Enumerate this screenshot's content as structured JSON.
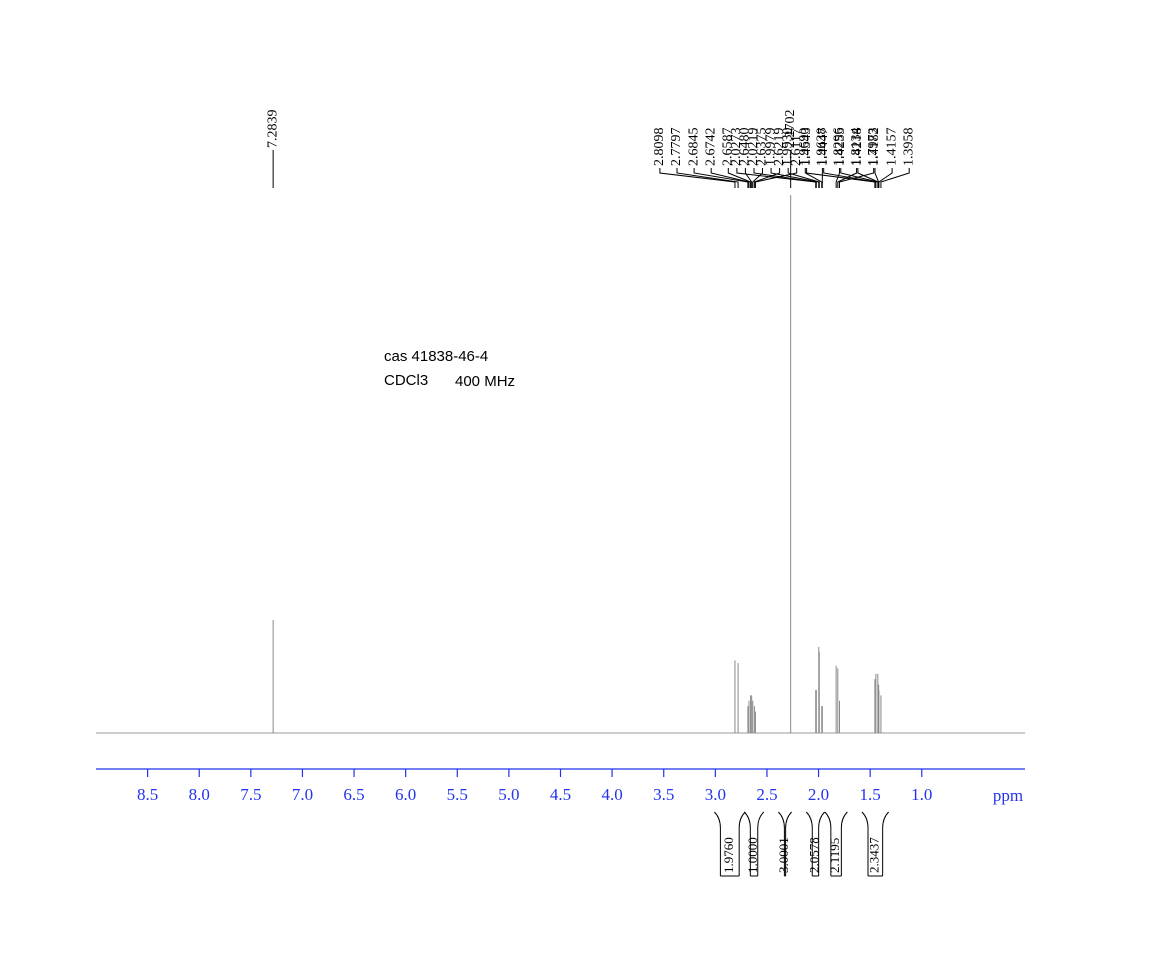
{
  "chart_data": {
    "type": "nmr",
    "annotations": [
      "cas 41838-46-4",
      "CDCl3",
      "400 MHz"
    ],
    "x_label": "ppm",
    "xlim": [
      9.0,
      0.0
    ],
    "xticks": [
      8.5,
      {
        "value": 8.0,
        "label": "8.0"
      },
      7.5,
      {
        "value": 7.0,
        "label": "7.0"
      },
      6.5,
      {
        "value": 6.0,
        "label": "6.0"
      },
      5.5,
      {
        "value": 5.0,
        "label": "5.0"
      },
      4.5,
      {
        "value": 4.0,
        "label": "4.0"
      },
      3.5,
      {
        "value": 3.0,
        "label": "3.0"
      },
      2.5,
      {
        "value": 2.0,
        "label": "2.0"
      },
      1.5,
      {
        "value": 1.0,
        "label": "1.0"
      }
    ],
    "peaks": {
      "values": [
        7.2839,
        2.8098,
        2.7797,
        2.6845,
        2.6742,
        2.6587,
        2.648,
        2.6375,
        2.6219,
        2.6117,
        2.2702,
        2.0273,
        2.0219,
        1.9979,
        1.993,
        1.969,
        1.9638,
        1.8296,
        1.8134,
        1.7973,
        1.4543,
        1.4447,
        1.4255,
        1.4218,
        1.4182,
        1.4157,
        1.3958
      ],
      "value_labels": [
        "7.2839",
        "2.8098",
        "2.7797",
        "2.6845",
        "2.6742",
        "2.6587",
        "2.6480",
        "2.6375",
        "2.6219",
        "2.6117",
        "2.2702",
        "2.0273",
        "2.0219",
        "1.9979",
        "1.9930",
        "1.9690",
        "1.9638",
        "1.8296",
        "1.8134",
        "1.7973",
        "1.4543",
        "1.4447",
        "1.4255",
        "1.4218",
        "1.4182",
        "1.4157",
        "1.3958"
      ],
      "heights": [
        21,
        13.5,
        13,
        5,
        6,
        7,
        7,
        6,
        5,
        4,
        100,
        8,
        8,
        16,
        15,
        5,
        5,
        12.5,
        12,
        6,
        10,
        11,
        11,
        9,
        9,
        8,
        7
      ]
    },
    "integrals": {
      "ranges": [
        [
          2.98,
          2.74
        ],
        [
          2.69,
          2.56
        ],
        [
          2.36,
          2.29
        ],
        [
          2.09,
          1.97
        ],
        [
          1.91,
          1.75
        ],
        [
          1.55,
          1.35
        ]
      ],
      "values": [
        1.976,
        1.0,
        3.0001,
        2.0578,
        2.1195,
        2.3437
      ],
      "value_labels": [
        "1.9760",
        "1.0000",
        "3.0001",
        "2.0578",
        "2.1195",
        "2.3437"
      ]
    }
  }
}
